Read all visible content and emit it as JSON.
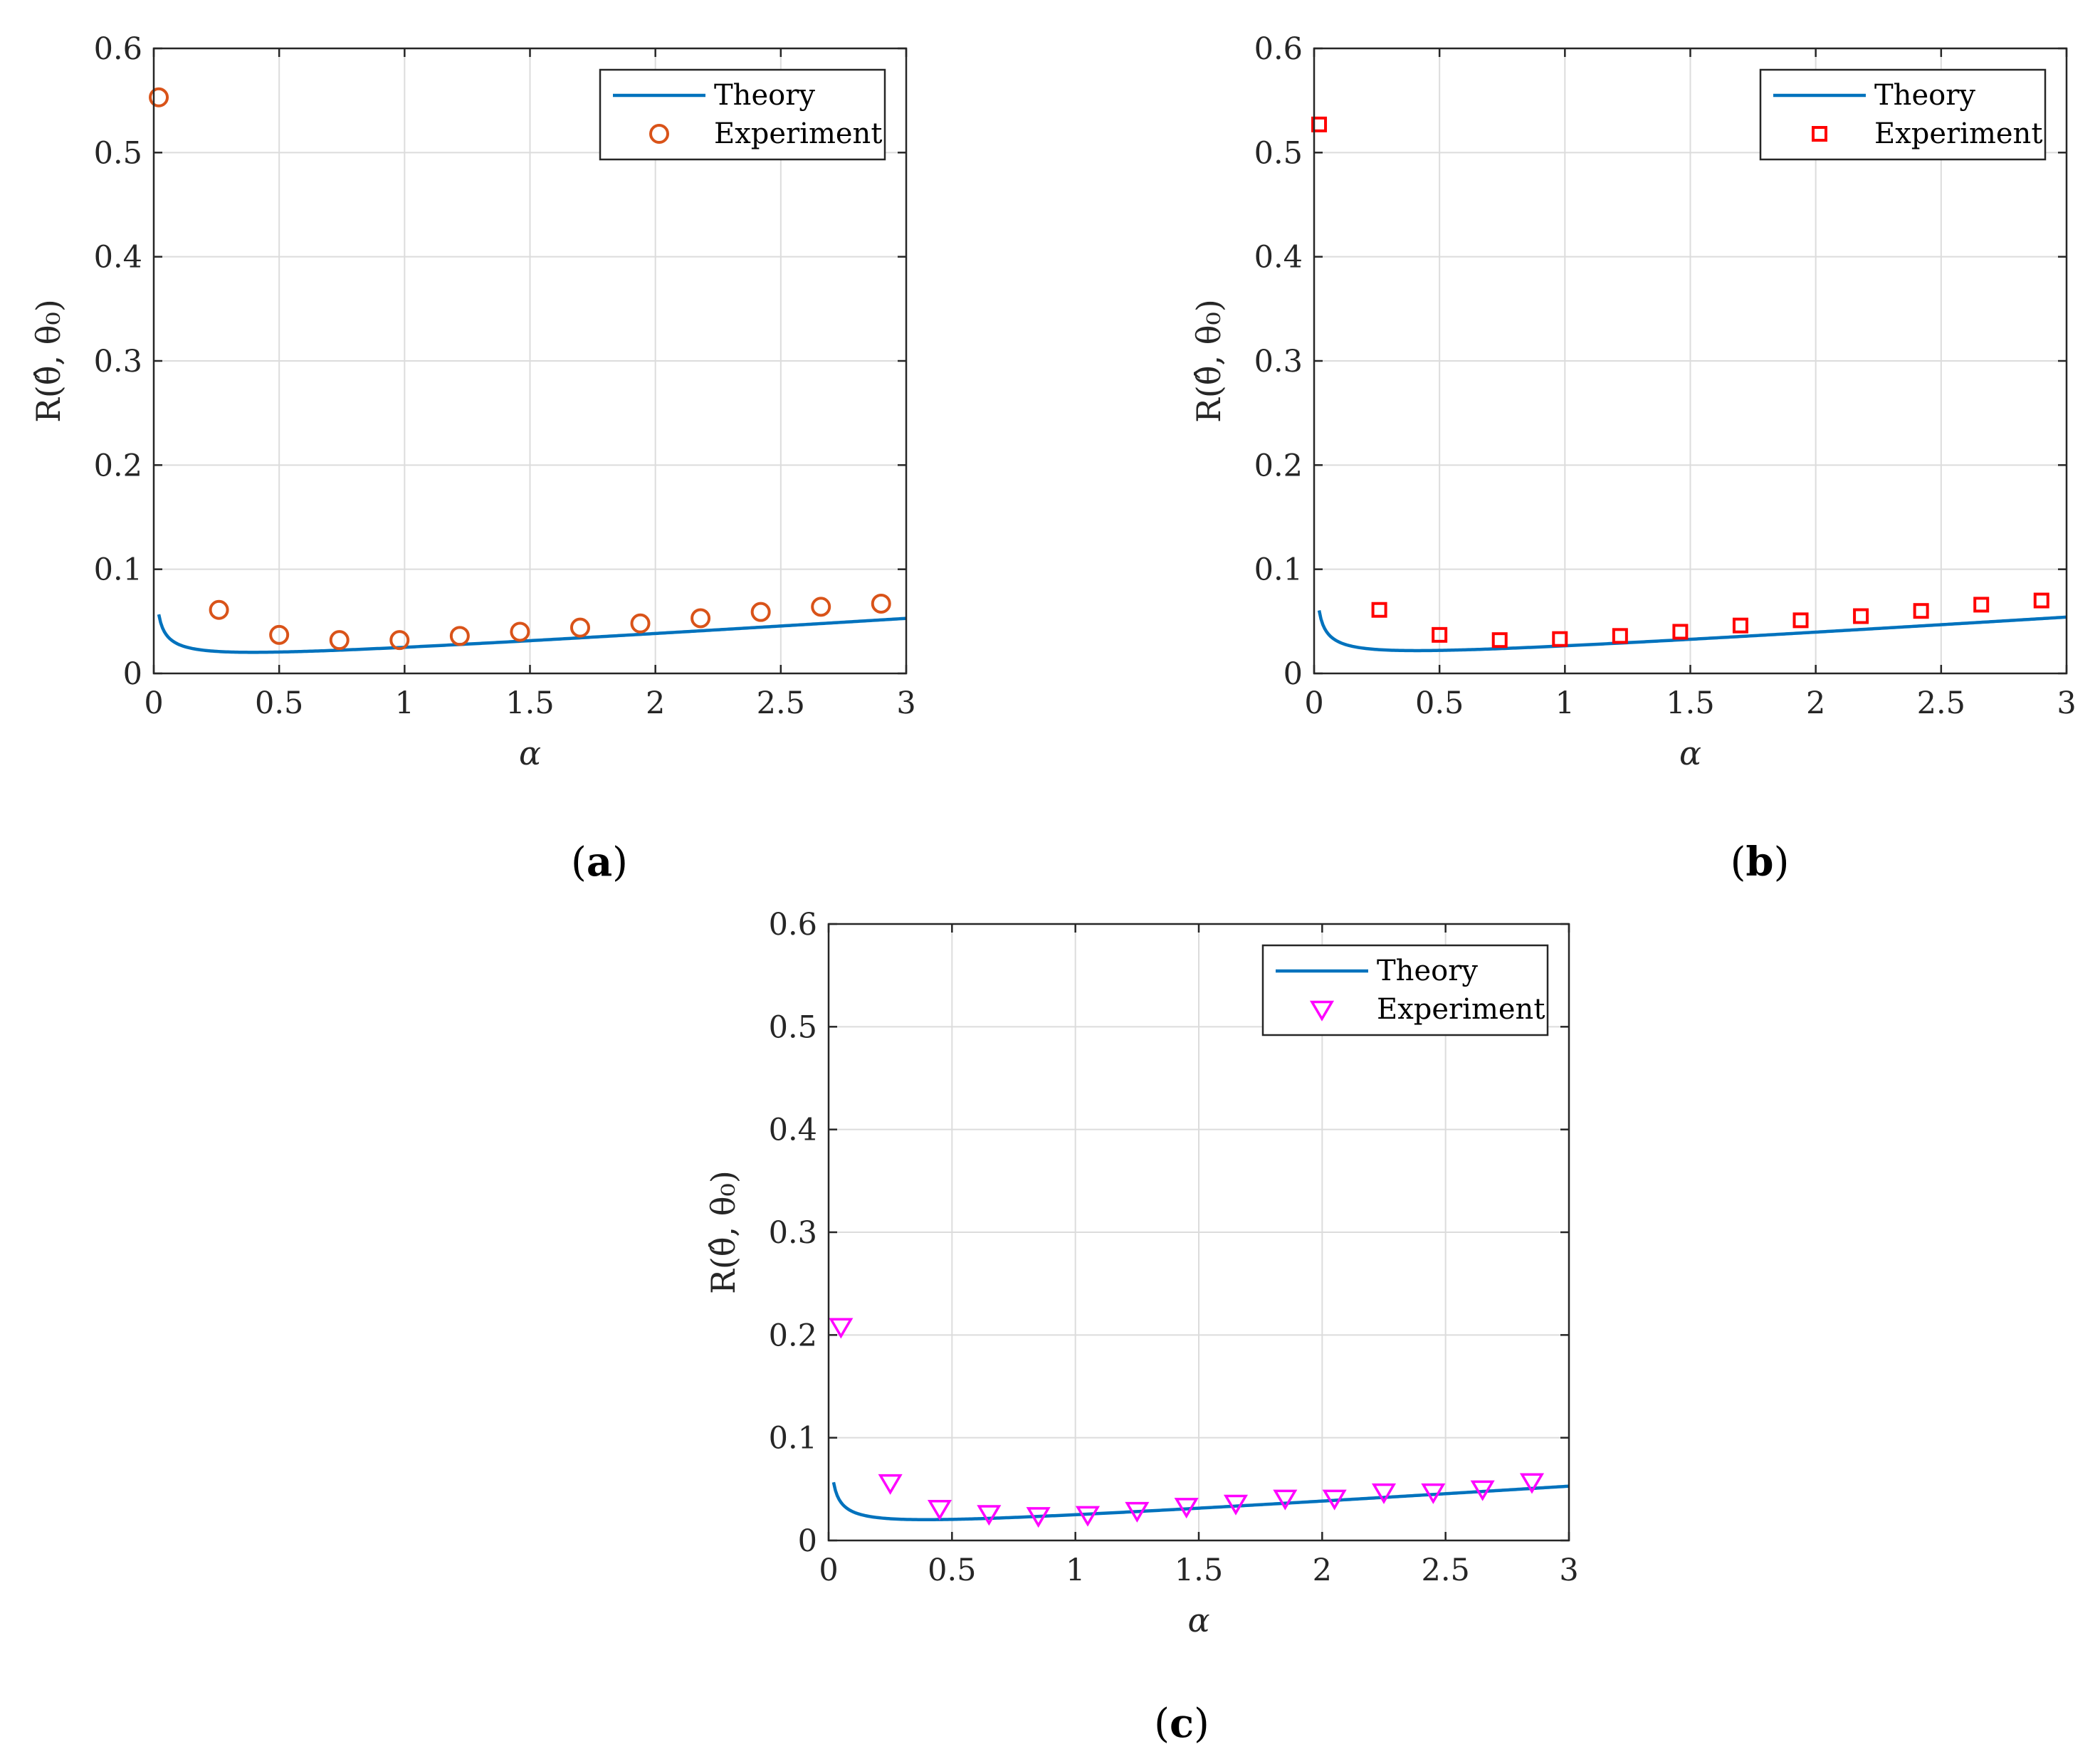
{
  "colors": {
    "theory": "#0072BD",
    "experiment_a": "#D95319",
    "experiment_b": "#FF0000",
    "experiment_c": "#FF00FF"
  },
  "chart_data": [
    {
      "id": "a",
      "type": "line",
      "caption": "(a)",
      "caption_letter": "a",
      "xlabel": "α",
      "ylabel": "R(θ̂, θ₀)",
      "xlim": [
        0,
        3
      ],
      "ylim": [
        0,
        0.6
      ],
      "xticks": [
        "0",
        "0.5",
        "1",
        "1.5",
        "2",
        "2.5",
        "3"
      ],
      "yticks": [
        "0",
        "0.1",
        "0.2",
        "0.3",
        "0.4",
        "0.5",
        "0.6"
      ],
      "grid": true,
      "legend": {
        "position": "top-right",
        "theory_label": "Theory",
        "experiment_label": "Experiment"
      },
      "series": [
        {
          "name": "Theory",
          "kind": "line",
          "k": 0.0077,
          "b": 0.0095,
          "c": 0.0335,
          "d": 0.0
        },
        {
          "name": "Experiment",
          "kind": "marker",
          "marker": "circle",
          "x": [
            0.02,
            0.26,
            0.5,
            0.74,
            0.98,
            1.22,
            1.46,
            1.7,
            1.94,
            2.18,
            2.42,
            2.66,
            2.9
          ],
          "y": [
            0.553,
            0.061,
            0.037,
            0.032,
            0.032,
            0.036,
            0.04,
            0.044,
            0.048,
            0.053,
            0.059,
            0.064,
            0.067
          ]
        }
      ]
    },
    {
      "id": "b",
      "type": "line",
      "caption": "(b)",
      "caption_letter": "b",
      "xlabel": "α",
      "ylabel": "R(θ̂, θ₀)",
      "xlim": [
        0,
        3
      ],
      "ylim": [
        0,
        0.6
      ],
      "xticks": [
        "0",
        "0.5",
        "1",
        "1.5",
        "2",
        "2.5",
        "3"
      ],
      "yticks": [
        "0",
        "0.1",
        "0.2",
        "0.3",
        "0.4",
        "0.5",
        "0.6"
      ],
      "grid": true,
      "legend": {
        "position": "top-right",
        "theory_label": "Theory",
        "experiment_label": "Experiment"
      },
      "series": [
        {
          "name": "Theory",
          "kind": "line",
          "k": 0.0081,
          "b": 0.0105,
          "c": 0.0348,
          "d": 0.001
        },
        {
          "name": "Experiment",
          "kind": "marker",
          "marker": "square",
          "x": [
            0.02,
            0.26,
            0.5,
            0.74,
            0.98,
            1.22,
            1.46,
            1.7,
            1.94,
            2.18,
            2.42,
            2.66,
            2.9
          ],
          "y": [
            0.527,
            0.061,
            0.037,
            0.032,
            0.033,
            0.036,
            0.04,
            0.046,
            0.051,
            0.055,
            0.06,
            0.066,
            0.07
          ]
        }
      ]
    },
    {
      "id": "c",
      "type": "line",
      "caption": "(c)",
      "caption_letter": "c",
      "xlabel": "α",
      "ylabel": "R(θ̂, θ₀)",
      "xlim": [
        0,
        3
      ],
      "ylim": [
        0,
        0.6
      ],
      "xticks": [
        "0",
        "0.5",
        "1",
        "1.5",
        "2",
        "2.5",
        "3"
      ],
      "yticks": [
        "0",
        "0.1",
        "0.2",
        "0.3",
        "0.4",
        "0.5",
        "0.6"
      ],
      "grid": true,
      "legend": {
        "position": "top-right",
        "theory_label": "Theory",
        "experiment_label": "Experiment"
      },
      "series": [
        {
          "name": "Theory",
          "kind": "line",
          "k": 0.0077,
          "b": 0.0095,
          "c": 0.0335,
          "d": 0.0
        },
        {
          "name": "Experiment",
          "kind": "marker",
          "marker": "triangle-down",
          "x": [
            0.05,
            0.25,
            0.45,
            0.65,
            0.85,
            1.05,
            1.25,
            1.45,
            1.65,
            1.85,
            2.05,
            2.25,
            2.45,
            2.65,
            2.85
          ],
          "y": [
            0.208,
            0.056,
            0.031,
            0.026,
            0.024,
            0.025,
            0.029,
            0.033,
            0.036,
            0.041,
            0.041,
            0.047,
            0.047,
            0.05,
            0.057
          ]
        }
      ]
    }
  ]
}
